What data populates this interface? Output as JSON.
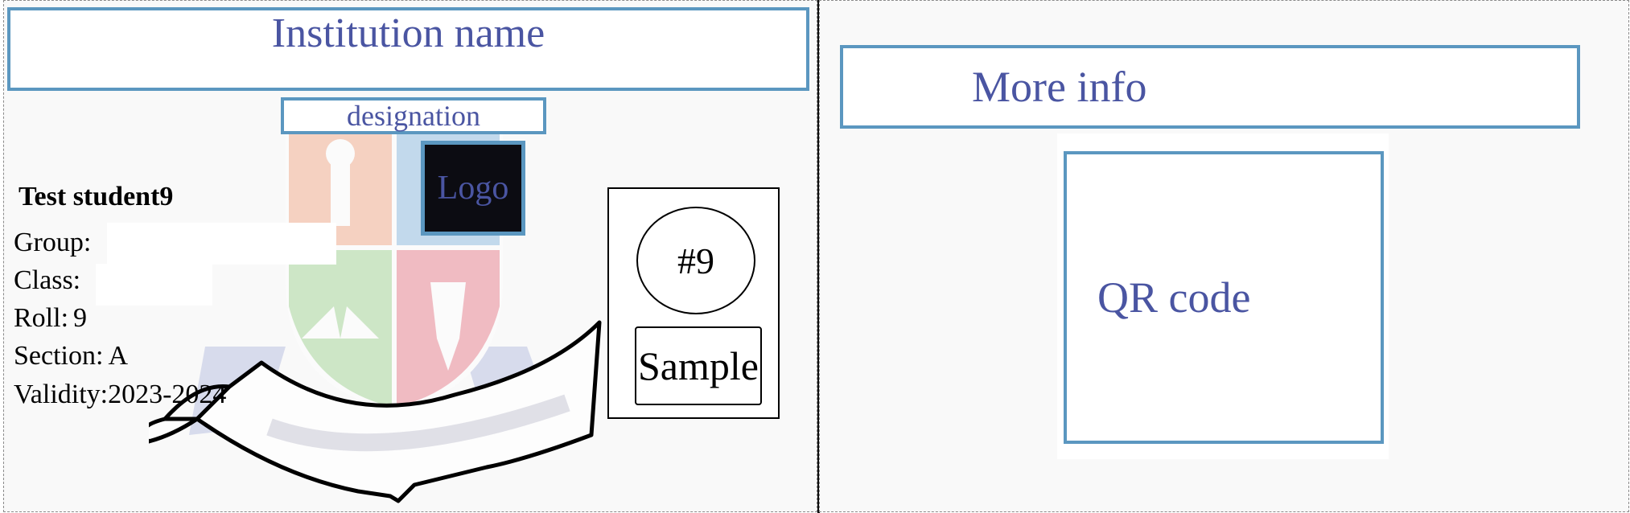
{
  "front": {
    "institution_name": "Institution name",
    "designation": "designation",
    "logo_label": "Logo",
    "student_name": "Test student9",
    "fields": [
      {
        "label": "Group:",
        "value": ""
      },
      {
        "label": "Class:",
        "value": ""
      },
      {
        "label": "Roll:",
        "value": "9"
      },
      {
        "label": "Section:",
        "value": "A"
      },
      {
        "label": "Validity:",
        "value": "2023-2024"
      }
    ],
    "photo": {
      "number": "#9",
      "sample_label": "Sample"
    }
  },
  "back": {
    "more_info": "More info",
    "qr_label": "QR code"
  },
  "colors": {
    "box_border": "#5b97c0",
    "box_text": "#4a55a2",
    "logo_bg": "#0c0c12"
  }
}
